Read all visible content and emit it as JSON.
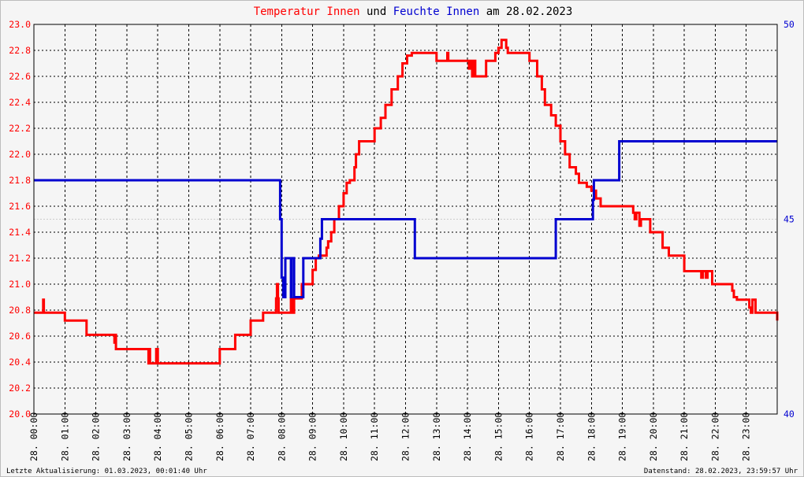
{
  "title": {
    "part1": "Temperatur Innen",
    "part2": " und ",
    "part3": "Feuchte Innen",
    "part4": " am 28.02.2023"
  },
  "footer": {
    "left": "Letzte Aktualisierung: 01.03.2023, 00:01:40 Uhr",
    "right": "Datenstand: 28.02.2023, 23:59:57 Uhr"
  },
  "colors": {
    "temperature": "#ff0000",
    "humidity": "#0000d0",
    "left_axis_text": "#ff0000",
    "right_axis_text": "#0000d0",
    "grid": "#000000",
    "background": "#f5f5f5"
  },
  "chart_data": {
    "type": "line",
    "title": "Temperatur Innen und Feuchte Innen am 28.02.2023",
    "xlim": [
      0,
      24
    ],
    "ylim_left": [
      20.0,
      23.0
    ],
    "ylim_right": [
      40,
      50
    ],
    "y_ticks_left": [
      "20.0",
      "20.2",
      "20.4",
      "20.6",
      "20.8",
      "21.0",
      "21.2",
      "21.4",
      "21.6",
      "21.8",
      "22.0",
      "22.2",
      "22.4",
      "22.6",
      "22.8",
      "23.0"
    ],
    "y_ticks_right": [
      "40",
      "45",
      "50"
    ],
    "x_ticks": [
      "28. 00:00",
      "28. 01:00",
      "28. 02:00",
      "28. 03:00",
      "28. 04:00",
      "28. 05:00",
      "28. 06:00",
      "28. 07:00",
      "28. 08:00",
      "28. 09:00",
      "28. 10:00",
      "28. 11:00",
      "28. 12:00",
      "28. 13:00",
      "28. 14:00",
      "28. 15:00",
      "28. 16:00",
      "28. 17:00",
      "28. 18:00",
      "28. 19:00",
      "28. 20:00",
      "28. 21:00",
      "28. 22:00",
      "28. 23:00"
    ],
    "grid": true,
    "series": [
      {
        "name": "Temperatur Innen",
        "axis": "left",
        "x": [
          0.0,
          0.28,
          0.3,
          0.32,
          1.0,
          1.65,
          1.7,
          2.55,
          2.6,
          2.62,
          2.65,
          2.7,
          3.65,
          3.7,
          3.72,
          3.75,
          3.95,
          4.0,
          4.03,
          5.97,
          6.0,
          6.45,
          6.5,
          6.93,
          7.0,
          7.35,
          7.4,
          7.82,
          7.85,
          7.88,
          7.9,
          8.25,
          8.3,
          8.36,
          8.4,
          8.6,
          8.65,
          8.9,
          9.0,
          9.1,
          9.2,
          9.45,
          9.5,
          9.6,
          9.7,
          9.85,
          10.0,
          10.1,
          10.2,
          10.35,
          10.4,
          10.5,
          10.65,
          11.0,
          11.2,
          11.35,
          11.55,
          11.75,
          11.9,
          12.05,
          12.2,
          12.5,
          13.0,
          13.3,
          13.35,
          13.38,
          13.5,
          14.0,
          14.05,
          14.1,
          14.15,
          14.2,
          14.25,
          14.5,
          14.6,
          14.9,
          15.0,
          15.1,
          15.15,
          15.25,
          15.3,
          15.4,
          15.5,
          16.0,
          16.25,
          16.4,
          16.5,
          16.7,
          16.85,
          17.0,
          17.15,
          17.3,
          17.4,
          17.5,
          17.6,
          17.7,
          17.85,
          18.0,
          18.05,
          18.15,
          18.3,
          18.6,
          19.0,
          19.35,
          19.4,
          19.45,
          19.55,
          19.6,
          19.9,
          20.0,
          20.3,
          20.4,
          20.5,
          20.9,
          21.0,
          21.5,
          21.55,
          21.6,
          21.7,
          21.75,
          21.9,
          22.0,
          22.5,
          22.55,
          22.6,
          22.7,
          23.0,
          23.1,
          23.15,
          23.2,
          23.3,
          23.5,
          24.0
        ],
        "values": [
          20.78,
          20.78,
          20.88,
          20.78,
          20.72,
          20.72,
          20.61,
          20.61,
          20.55,
          20.61,
          20.5,
          20.5,
          20.5,
          20.39,
          20.5,
          20.39,
          20.5,
          20.39,
          20.39,
          20.39,
          20.5,
          20.5,
          20.61,
          20.61,
          20.72,
          20.72,
          20.78,
          20.89,
          21.0,
          20.89,
          20.78,
          20.78,
          20.89,
          20.78,
          20.89,
          20.89,
          21.0,
          21.0,
          21.11,
          21.2,
          21.22,
          21.28,
          21.33,
          21.4,
          21.5,
          21.6,
          21.7,
          21.78,
          21.8,
          21.9,
          22.0,
          22.1,
          22.1,
          22.2,
          22.28,
          22.38,
          22.5,
          22.6,
          22.7,
          22.76,
          22.78,
          22.78,
          22.72,
          22.72,
          22.78,
          22.72,
          22.72,
          22.72,
          22.66,
          22.72,
          22.6,
          22.72,
          22.6,
          22.6,
          22.72,
          22.78,
          22.82,
          22.88,
          22.88,
          22.82,
          22.78,
          22.78,
          22.78,
          22.72,
          22.6,
          22.5,
          22.38,
          22.3,
          22.22,
          22.1,
          22.0,
          21.9,
          21.9,
          21.85,
          21.78,
          21.78,
          21.75,
          21.72,
          21.72,
          21.66,
          21.6,
          21.6,
          21.6,
          21.55,
          21.5,
          21.55,
          21.45,
          21.5,
          21.4,
          21.4,
          21.28,
          21.28,
          21.22,
          21.22,
          21.1,
          21.1,
          21.05,
          21.1,
          21.05,
          21.1,
          21.0,
          21.0,
          21.0,
          20.95,
          20.9,
          20.88,
          20.88,
          20.82,
          20.78,
          20.88,
          20.78,
          20.78,
          20.72
        ]
      },
      {
        "name": "Feuchte Innen",
        "axis": "right",
        "x": [
          0.0,
          7.92,
          7.95,
          8.0,
          8.05,
          8.12,
          8.15,
          8.2,
          8.3,
          8.32,
          8.35,
          8.4,
          8.5,
          8.62,
          8.7,
          9.2,
          9.25,
          9.3,
          12.25,
          12.3,
          16.8,
          16.85,
          18.0,
          18.05,
          18.08,
          18.12,
          18.85,
          18.9,
          24.0
        ],
        "values": [
          46.0,
          46.0,
          45.0,
          43.5,
          43.0,
          44.0,
          44.0,
          44.0,
          43.0,
          44.0,
          44.0,
          43.0,
          43.0,
          43.0,
          44.0,
          44.0,
          44.5,
          45.0,
          45.0,
          44.0,
          44.0,
          45.0,
          45.0,
          45.5,
          46.0,
          46.0,
          46.0,
          47.0,
          47.0
        ]
      }
    ]
  }
}
